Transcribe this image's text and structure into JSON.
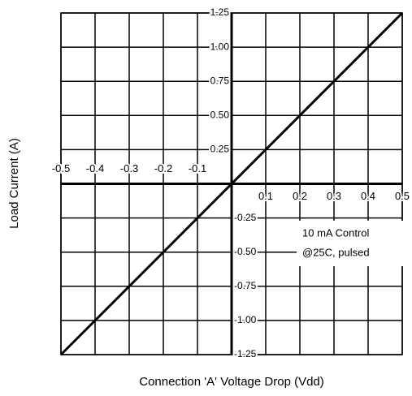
{
  "chart_data": {
    "type": "line",
    "x_label": "Connection 'A' Voltage Drop (Vdd)",
    "y_label": "Load Current (A)",
    "annotations": [
      "10 mA Control",
      "@25C, pulsed"
    ],
    "x": [
      -0.5,
      0.5
    ],
    "series": [
      {
        "color": "#000000",
        "values": [
          -1.25,
          1.25
        ]
      }
    ],
    "xlim": [
      -0.5,
      0.5
    ],
    "xticks": [
      -0.5,
      -0.4,
      -0.3,
      -0.2,
      -0.1,
      0.1,
      0.2,
      0.3,
      0.4,
      0.5
    ],
    "ylim": [
      -1.25,
      1.25
    ],
    "yticks": [
      1.25,
      {
        "value": 1,
        "label": "1.00"
      },
      0.75,
      {
        "value": 0.5,
        "label": "0.50"
      },
      0.25,
      -0.25,
      {
        "value": -0.5,
        "label": "-0.50"
      },
      -0.75,
      {
        "value": -1,
        "label": "-1.00"
      },
      -1.25
    ],
    "grid": true
  }
}
